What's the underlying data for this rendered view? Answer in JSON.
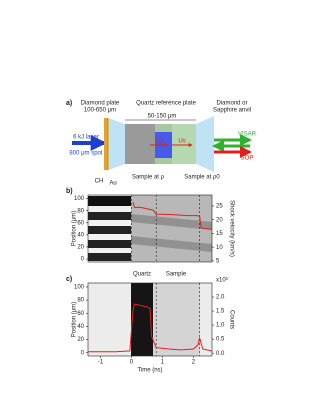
{
  "diagram": {
    "label": "a)",
    "diamond_plate": [
      "Diamond plate",
      "100-650 μm"
    ],
    "quartz_plate": "Quartz reference plate",
    "anvil": [
      "Diamond or",
      "Sapphire anvil"
    ],
    "thickness": "50-150 μm",
    "laser": [
      "6 kJ laser",
      "800 μm spot"
    ],
    "ch": "CH",
    "au": "Au",
    "up": "Up",
    "us": "Us",
    "sample_compressed": "Sample at ρ",
    "sample_initial": "Sample at ρ0",
    "visar": "VISAR",
    "sop": "SOP"
  },
  "chart_data": [
    {
      "type": "line",
      "label": "b)",
      "ylabel": "Position (μm)",
      "y2label": "Shock velocity (km/s)",
      "xlim": [
        -1.4,
        2.6
      ],
      "ylim": [
        -5,
        106
      ],
      "yticks": [
        0,
        20,
        40,
        60,
        80,
        100
      ],
      "y2lim": [
        4.6,
        29
      ],
      "y2ticks": [
        5,
        10,
        15,
        20,
        25
      ],
      "vlines": [
        0,
        0.8,
        2.2
      ],
      "series": [
        {
          "color": "#e02020",
          "axis": "y2",
          "x": [
            0.05,
            0.1,
            0.3,
            0.5,
            0.7,
            0.8,
            1.0,
            1.4,
            1.8,
            2.1,
            2.2,
            2.25,
            2.6
          ],
          "values": [
            26.5,
            24.5,
            24.5,
            24,
            23.5,
            22,
            22,
            21.8,
            21.5,
            21.5,
            21.3,
            17,
            16.5
          ]
        }
      ]
    },
    {
      "type": "line",
      "label": "c)",
      "annotations": [
        "Quartz",
        "Sample"
      ],
      "xlabel": "Time (ns)",
      "ylabel": "Position (μm)",
      "y2label": "Counts",
      "y2exponent": "x10³",
      "xlim": [
        -1.4,
        2.6
      ],
      "xticks": [
        -1,
        0,
        1,
        2
      ],
      "ylim": [
        -5,
        106
      ],
      "yticks": [
        0,
        20,
        40,
        60,
        80,
        100
      ],
      "y2lim": [
        -0.1,
        2.5
      ],
      "y2ticks": [
        {
          "value": 0,
          "label": "0.0"
        },
        {
          "value": 0.5,
          "label": "0.5"
        },
        {
          "value": 1,
          "label": "1.0"
        },
        {
          "value": 1.5,
          "label": "1.5"
        },
        {
          "value": 2,
          "label": "2.0"
        }
      ],
      "vlines": [
        0,
        0.8,
        2.2
      ],
      "series": [
        {
          "color": "#e02020",
          "axis": "y2",
          "x": [
            -1.4,
            -0.5,
            -0.05,
            0.05,
            0.1,
            0.3,
            0.5,
            0.6,
            0.65,
            0.8,
            1.2,
            1.6,
            2.0,
            2.15,
            2.2,
            2.3,
            2.6
          ],
          "values": [
            0.05,
            0.05,
            0.08,
            1.5,
            1.75,
            1.7,
            1.65,
            1.6,
            0.6,
            0.2,
            0.15,
            0.12,
            0.15,
            0.3,
            0.55,
            0.15,
            0.08
          ]
        }
      ]
    }
  ]
}
